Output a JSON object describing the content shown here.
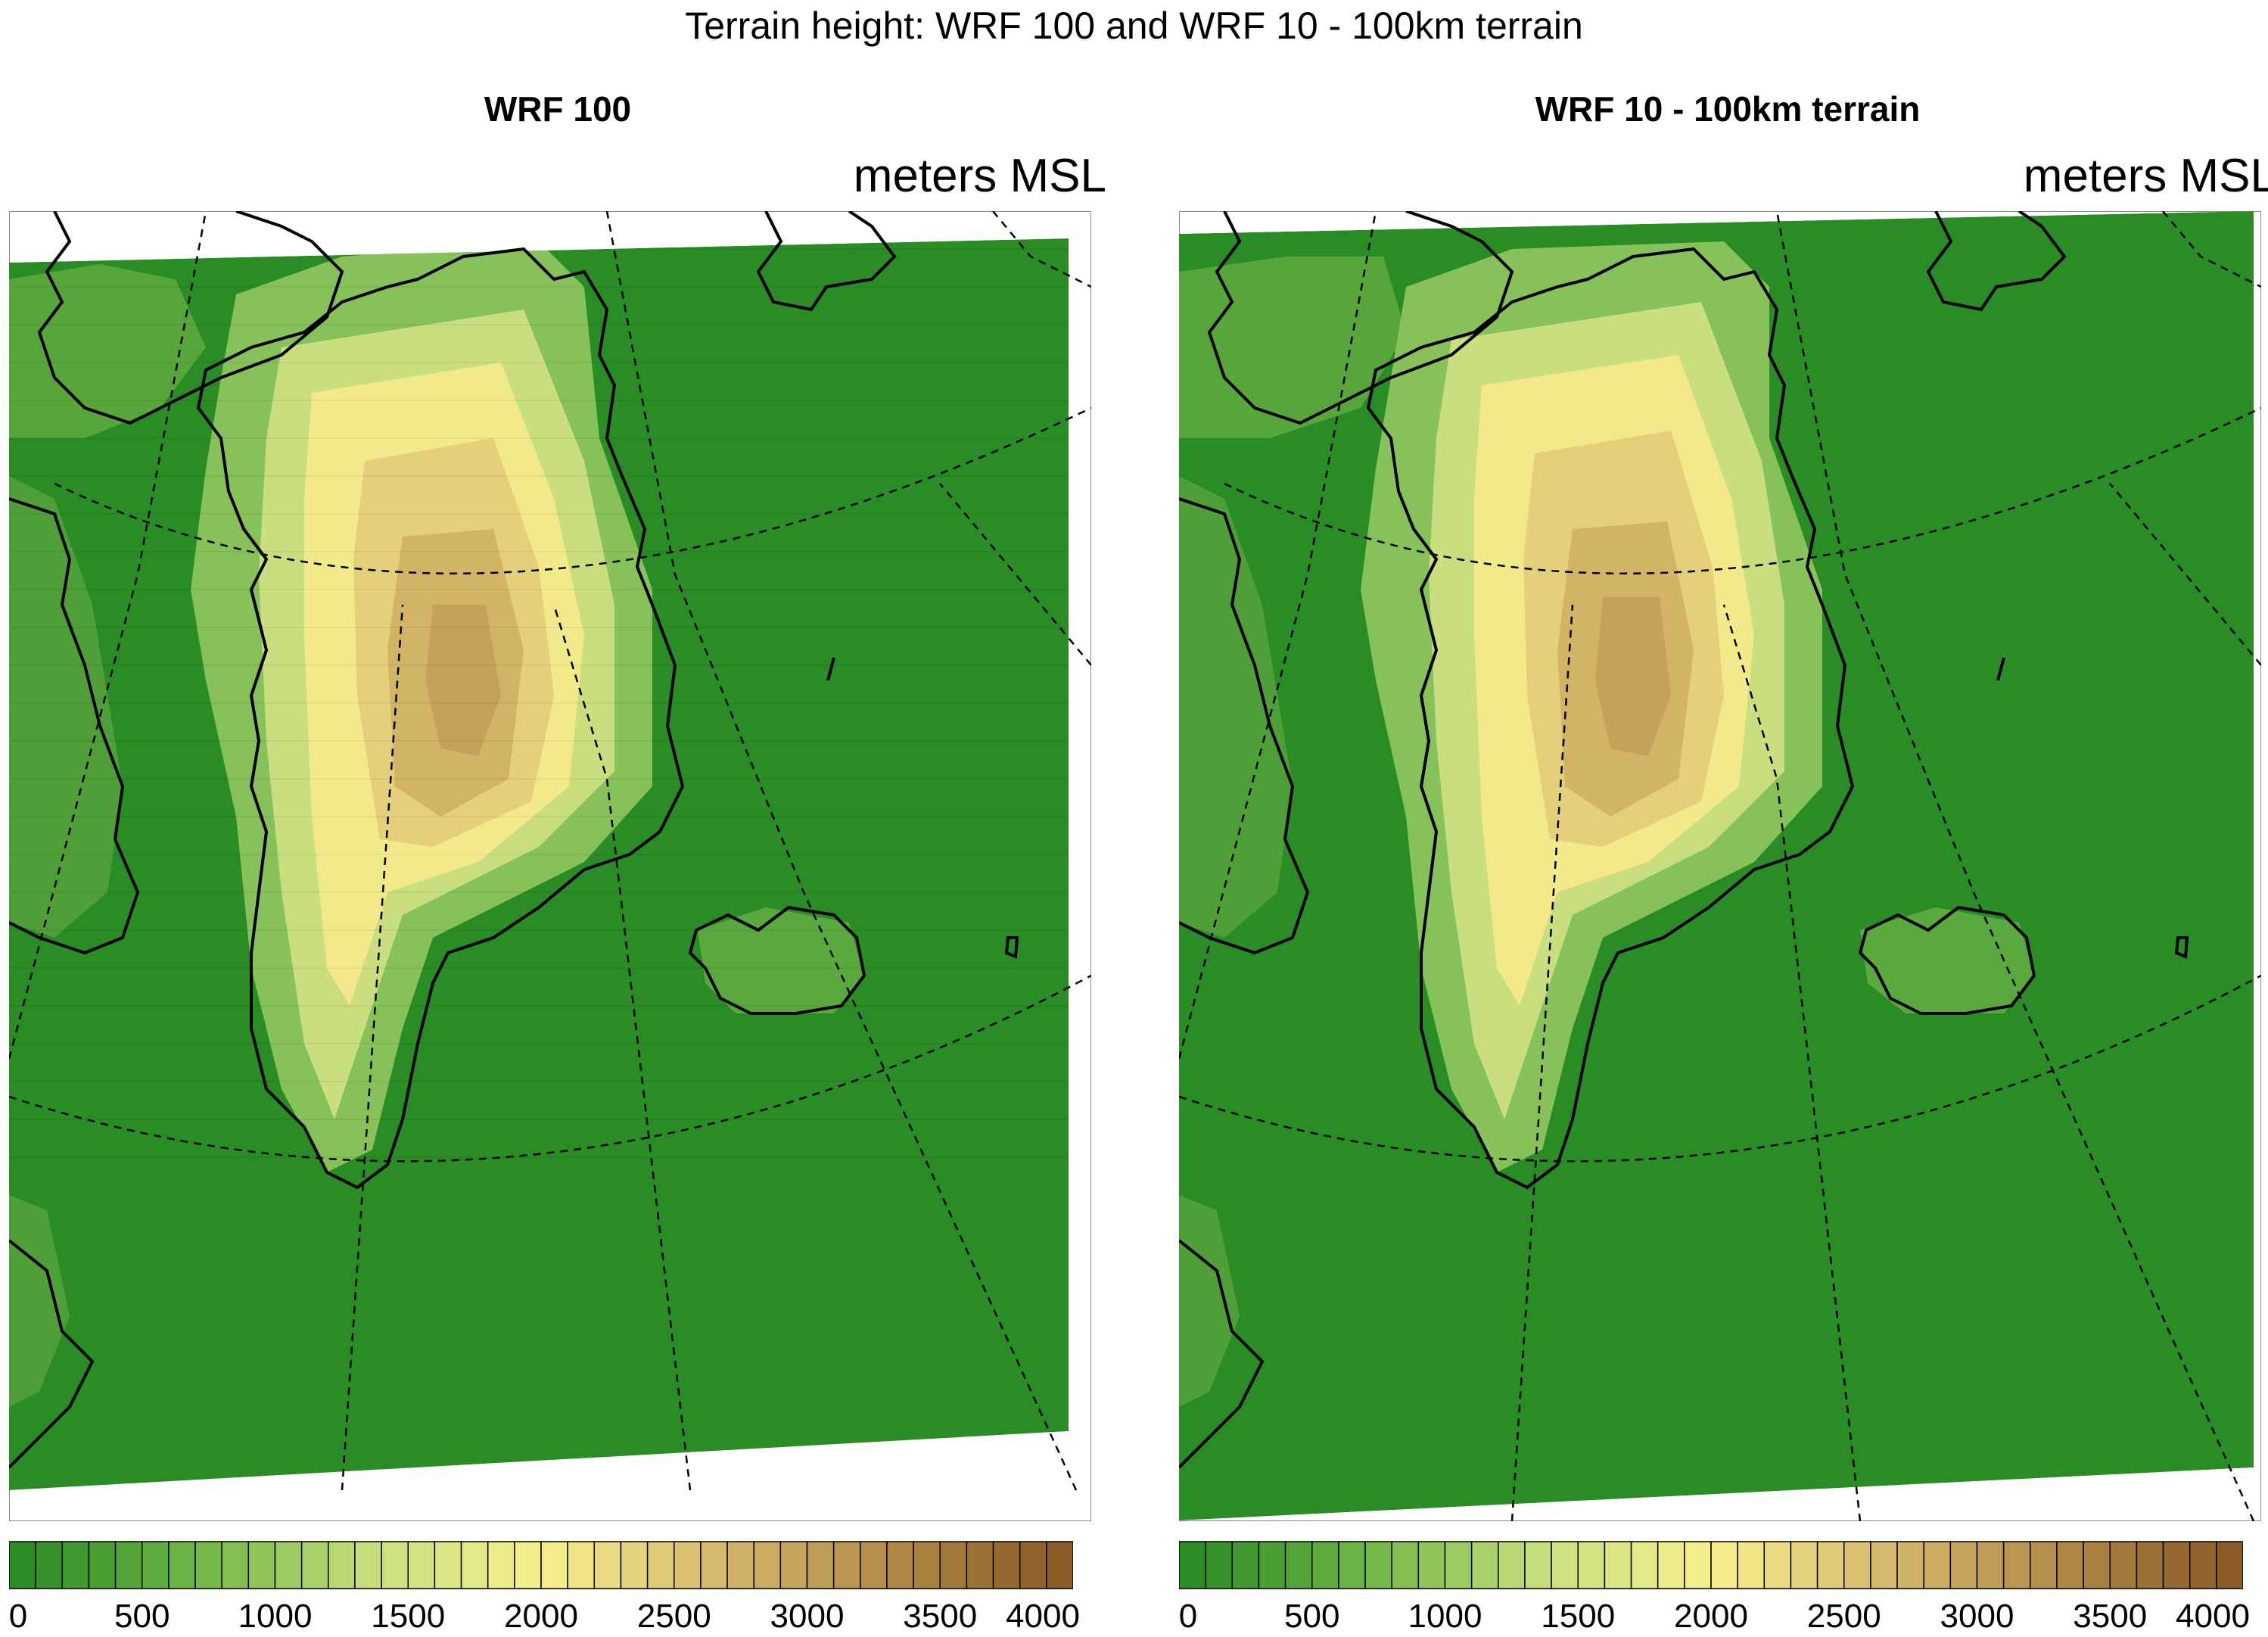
{
  "title": "Terrain height: WRF 100 and WRF 10 - 100km terrain",
  "panels": [
    {
      "title": "WRF 100",
      "units": "meters MSL"
    },
    {
      "title": "WRF 10 - 100km terrain",
      "units": "meters MSL"
    }
  ],
  "colorbar": {
    "min": 0,
    "max": 4000,
    "step_count": 40,
    "tick_labels": [
      "0",
      "500",
      "1000",
      "1500",
      "2000",
      "2500",
      "3000",
      "3500",
      "4000"
    ],
    "colors": [
      "#2a8c25",
      "#6fb545",
      "#c5de7d",
      "#f7ef8e",
      "#d4b96c",
      "#b28b48",
      "#8a5a27"
    ]
  }
}
